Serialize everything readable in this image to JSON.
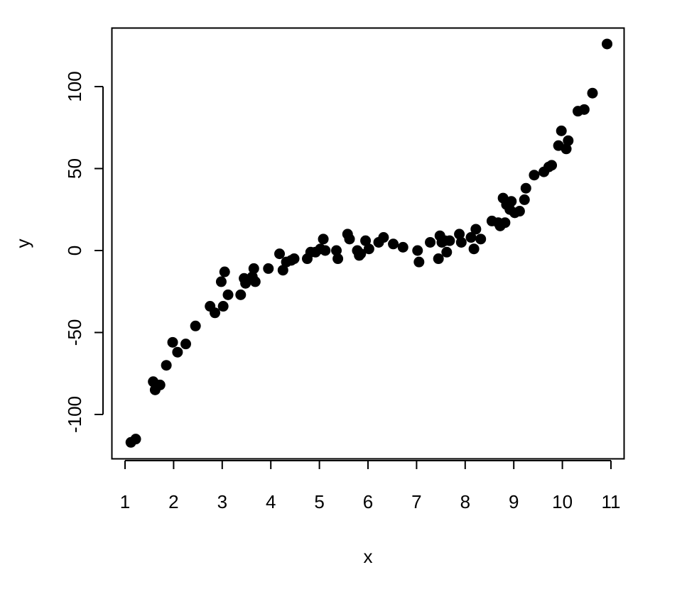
{
  "chart_data": {
    "type": "scatter",
    "title": "",
    "xlabel": "x",
    "ylabel": "y",
    "xlim": [
      1,
      11
    ],
    "ylim": [
      -125,
      125
    ],
    "x_ticks": [
      1,
      2,
      3,
      4,
      5,
      6,
      7,
      8,
      9,
      10,
      11
    ],
    "y_ticks": [
      -100,
      -50,
      0,
      50,
      100
    ],
    "grid": false,
    "point_color": "#000000",
    "points": [
      [
        1.12,
        -117
      ],
      [
        1.22,
        -115
      ],
      [
        1.58,
        -80
      ],
      [
        1.62,
        -85
      ],
      [
        1.72,
        -82
      ],
      [
        1.85,
        -70
      ],
      [
        1.98,
        -56
      ],
      [
        2.08,
        -62
      ],
      [
        2.25,
        -57
      ],
      [
        2.45,
        -46
      ],
      [
        2.75,
        -34
      ],
      [
        2.85,
        -38
      ],
      [
        2.98,
        -19
      ],
      [
        3.02,
        -34
      ],
      [
        3.05,
        -13
      ],
      [
        3.12,
        -27
      ],
      [
        3.38,
        -27
      ],
      [
        3.45,
        -17
      ],
      [
        3.48,
        -20
      ],
      [
        3.62,
        -16
      ],
      [
        3.65,
        -11
      ],
      [
        3.68,
        -19
      ],
      [
        3.95,
        -11
      ],
      [
        4.18,
        -2
      ],
      [
        4.25,
        -12
      ],
      [
        4.32,
        -7
      ],
      [
        4.42,
        -6
      ],
      [
        4.48,
        -5
      ],
      [
        4.75,
        -5
      ],
      [
        4.82,
        -1
      ],
      [
        4.92,
        -1
      ],
      [
        5.02,
        1
      ],
      [
        5.08,
        7
      ],
      [
        5.12,
        0
      ],
      [
        5.35,
        0
      ],
      [
        5.38,
        -5
      ],
      [
        5.58,
        10
      ],
      [
        5.62,
        7
      ],
      [
        5.78,
        0
      ],
      [
        5.82,
        -3
      ],
      [
        5.85,
        -2
      ],
      [
        5.95,
        6
      ],
      [
        6.02,
        1
      ],
      [
        6.22,
        5
      ],
      [
        6.32,
        8
      ],
      [
        6.52,
        4
      ],
      [
        6.72,
        2
      ],
      [
        7.02,
        0
      ],
      [
        7.05,
        -7
      ],
      [
        7.28,
        5
      ],
      [
        7.45,
        -5
      ],
      [
        7.48,
        9
      ],
      [
        7.52,
        5
      ],
      [
        7.58,
        6
      ],
      [
        7.62,
        -1
      ],
      [
        7.68,
        6
      ],
      [
        7.88,
        10
      ],
      [
        7.92,
        5
      ],
      [
        8.12,
        8
      ],
      [
        8.18,
        1
      ],
      [
        8.22,
        13
      ],
      [
        8.32,
        7
      ],
      [
        8.55,
        18
      ],
      [
        8.68,
        17
      ],
      [
        8.72,
        15
      ],
      [
        8.78,
        32
      ],
      [
        8.82,
        17
      ],
      [
        8.85,
        28
      ],
      [
        8.92,
        25
      ],
      [
        8.95,
        30
      ],
      [
        9.02,
        23
      ],
      [
        9.12,
        24
      ],
      [
        9.22,
        31
      ],
      [
        9.25,
        38
      ],
      [
        9.42,
        46
      ],
      [
        9.62,
        48
      ],
      [
        9.72,
        51
      ],
      [
        9.78,
        52
      ],
      [
        9.92,
        64
      ],
      [
        9.98,
        73
      ],
      [
        10.08,
        62
      ],
      [
        10.12,
        67
      ],
      [
        10.32,
        85
      ],
      [
        10.45,
        86
      ],
      [
        10.62,
        96
      ],
      [
        10.92,
        126
      ]
    ]
  }
}
